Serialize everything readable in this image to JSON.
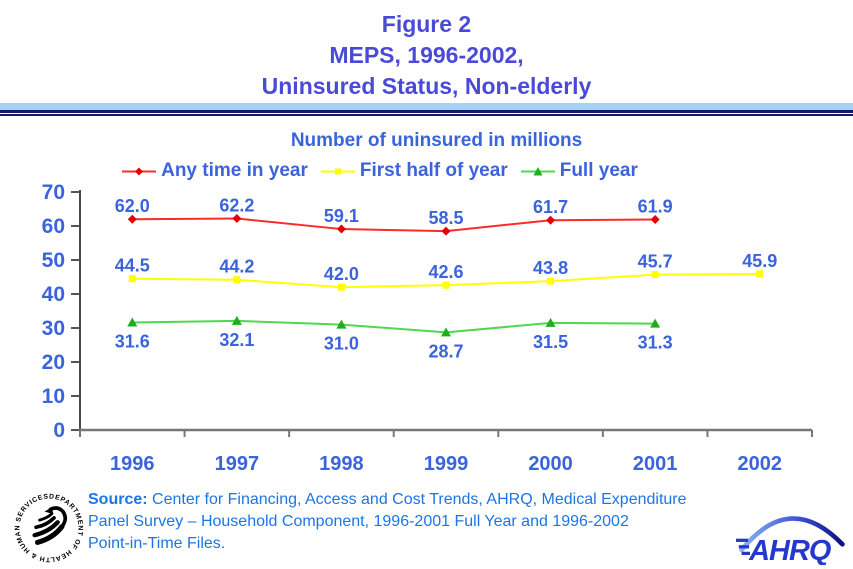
{
  "slide": {
    "title_lines": [
      "Figure 2",
      "MEPS, 1996-2002,",
      "Uninsured Status, Non-elderly"
    ],
    "subtitle": "Number of uninsured in millions"
  },
  "chart_data": {
    "type": "line",
    "title": "Number of uninsured in millions",
    "categories": [
      "1996",
      "1997",
      "1998",
      "1999",
      "2000",
      "2001",
      "2002"
    ],
    "yticks": [
      0,
      10,
      20,
      30,
      40,
      50,
      60,
      70
    ],
    "ylim": [
      0,
      70
    ],
    "xlabel": "",
    "ylabel": "",
    "grid": false,
    "legend_position": "top",
    "series": [
      {
        "name": "Any time in year",
        "color": "#ff2a2a",
        "marker_color": "#e60000",
        "marker": "diamond",
        "label_position": "above",
        "values": [
          62.0,
          62.2,
          59.1,
          58.5,
          61.7,
          61.9
        ]
      },
      {
        "name": "First half of year",
        "color": "#ffff00",
        "marker_color": "#ffff00",
        "marker": "square",
        "label_position": "above",
        "values": [
          44.5,
          44.2,
          42.0,
          42.6,
          43.8,
          45.7,
          45.9
        ]
      },
      {
        "name": "Full year",
        "color": "#4fd84f",
        "marker_color": "#1fae1f",
        "marker": "triangle",
        "label_position": "below",
        "values": [
          31.6,
          32.1,
          31.0,
          28.7,
          31.5,
          31.3
        ]
      }
    ]
  },
  "source": {
    "label": "Source:",
    "lines": [
      "Center for Financing, Access and Cost Trends, AHRQ, Medical Expenditure",
      "Panel Survey – Household Component, 1996-2001 Full Year and 1996-2002",
      "Point-in-Time Files."
    ]
  },
  "logos": {
    "hhs_ring_text": "DEPARTMENT OF HEALTH & HUMAN SERVICES • USA",
    "ahrq_text": "AHRQ"
  },
  "colors": {
    "title_blue": "#4a4ad8",
    "label_blue": "#3b64dc",
    "source_blue": "#1b76e4",
    "divider_light": "#a5d2f7",
    "divider_dark": "#16166b",
    "axis_gray": "#6e6e6e"
  }
}
